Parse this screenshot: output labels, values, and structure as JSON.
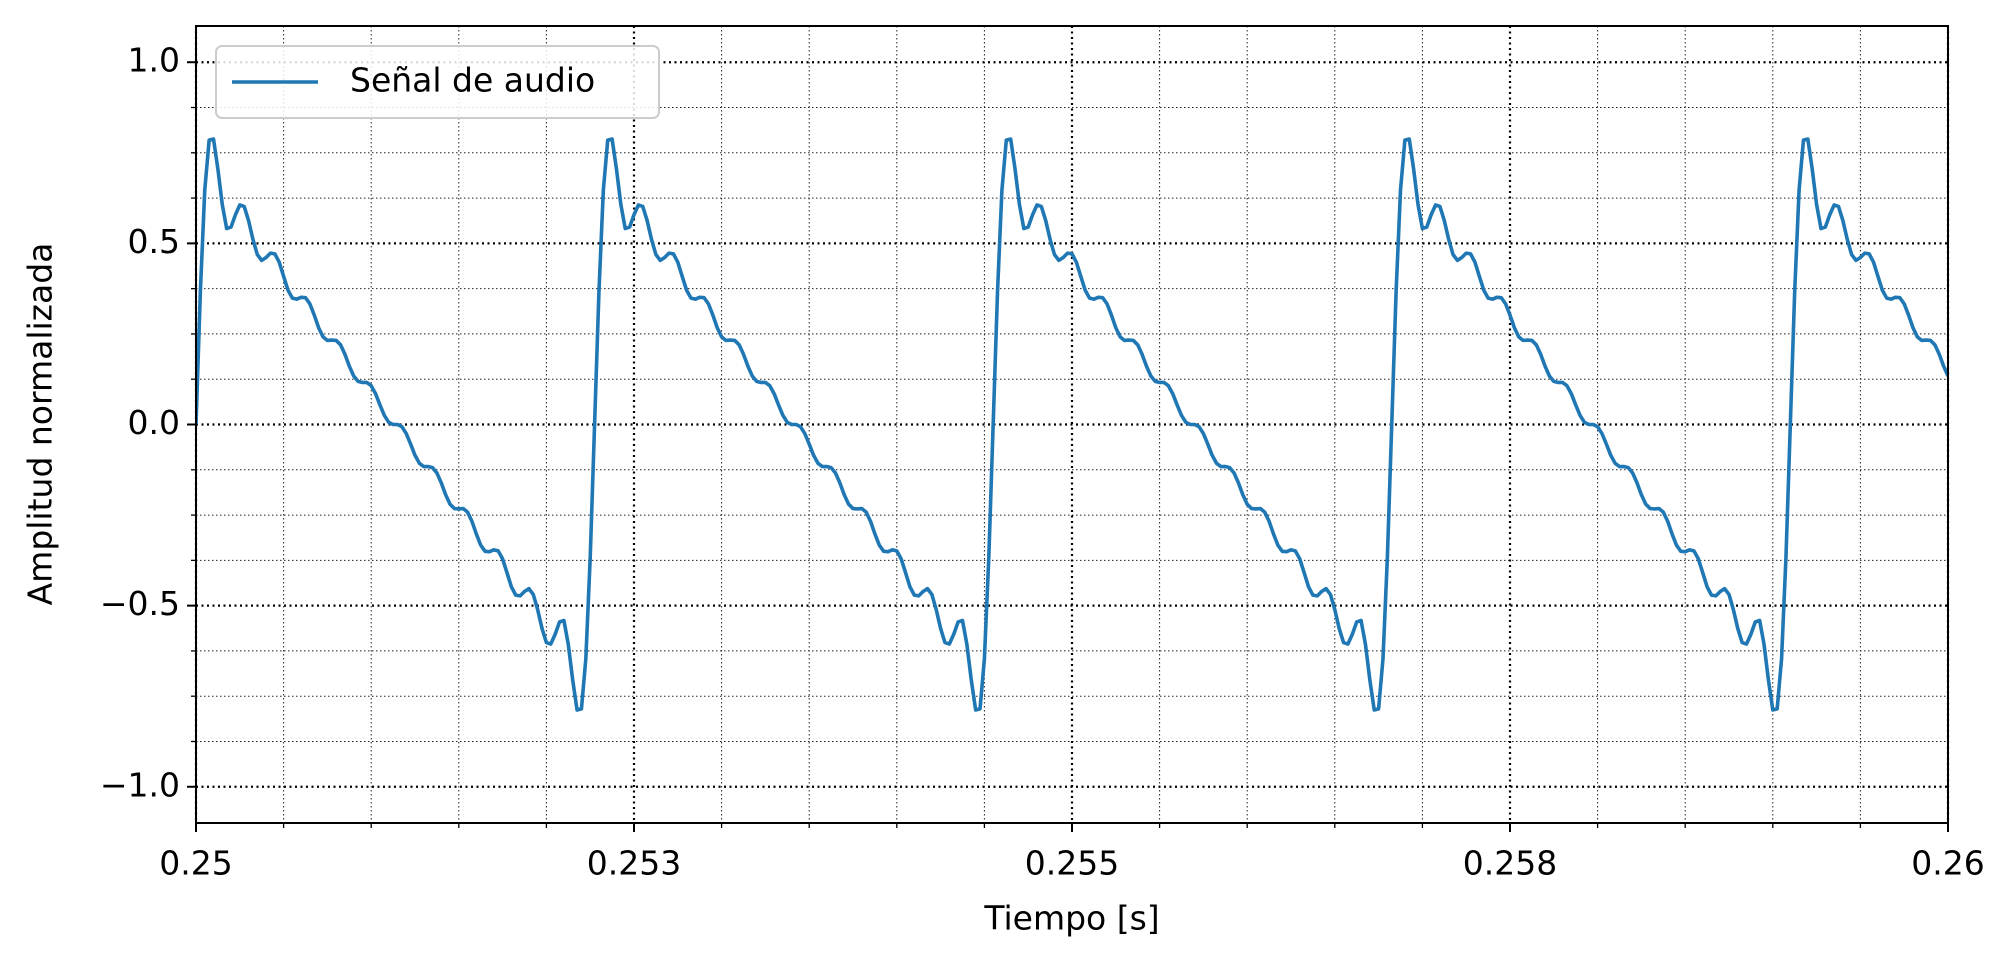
{
  "chart_data": {
    "type": "line",
    "xlabel": "Tiempo [s]",
    "ylabel": "Amplitud normalizada",
    "xlim": [
      0.25,
      0.26
    ],
    "ylim": [
      -1.1,
      1.1
    ],
    "xticks": [
      0.25,
      {
        "value": 0.2525,
        "label": "0.253"
      },
      0.255,
      {
        "value": 0.2575,
        "label": "0.258"
      },
      0.26
    ],
    "yticks": [
      {
        "value": -1,
        "label": "−1.0"
      },
      {
        "value": -0.5,
        "label": "−0.5"
      },
      {
        "value": 0,
        "label": "0.0"
      },
      {
        "value": 0.5,
        "label": "0.5"
      },
      {
        "value": 1,
        "label": "1.0"
      }
    ],
    "xminorticks": [
      0.2505,
      0.251,
      0.2515,
      0.252,
      0.253,
      0.2535,
      0.254,
      0.2545,
      0.2555,
      0.256,
      0.2565,
      0.257,
      0.258,
      0.2585,
      0.259,
      0.2595
    ],
    "yminorticks": [
      -0.875,
      -0.75,
      -0.625,
      -0.375,
      -0.25,
      -0.125,
      0.125,
      0.25,
      0.375,
      0.625,
      0.75,
      0.875
    ],
    "grid": true,
    "legend": "upper left",
    "x": [
      0.25,
      0.250025,
      0.25005,
      0.250075,
      0.2501,
      0.250125,
      0.25015,
      0.250175,
      0.2502,
      0.250225,
      0.25025,
      0.250275,
      0.2503,
      0.250325,
      0.25035,
      0.250375,
      0.2504,
      0.250425,
      0.25045,
      0.250475,
      0.2505,
      0.250525,
      0.25055,
      0.250575,
      0.2506,
      0.250625,
      0.25065,
      0.250675,
      0.2507,
      0.250725,
      0.25075,
      0.250775,
      0.2508,
      0.250825,
      0.25085,
      0.250875,
      0.2509,
      0.250925,
      0.25095,
      0.250975,
      0.251,
      0.251025,
      0.25105,
      0.251075,
      0.2511,
      0.251125,
      0.25115,
      0.251175,
      0.2512,
      0.251225,
      0.25125,
      0.251275,
      0.2513,
      0.251325,
      0.25135,
      0.251375,
      0.2514,
      0.251425,
      0.25145,
      0.251475,
      0.2515,
      0.251525,
      0.25155,
      0.251575,
      0.2516,
      0.251625,
      0.25165,
      0.251675,
      0.2517,
      0.251725,
      0.25175,
      0.251775,
      0.2518,
      0.251825,
      0.25185,
      0.251875,
      0.2519,
      0.251925,
      0.25195,
      0.251975,
      0.252,
      0.252025,
      0.25205,
      0.252075,
      0.2521,
      0.252125,
      0.25215,
      0.252175,
      0.2522,
      0.252225,
      0.25225,
      0.252275,
      0.2523,
      0.252325,
      0.25235,
      0.252375,
      0.2524,
      0.252425,
      0.25245,
      0.252475,
      0.2525,
      0.252525,
      0.25255,
      0.252575,
      0.2526,
      0.252625,
      0.25265,
      0.252675,
      0.2527,
      0.252725,
      0.25275,
      0.252775,
      0.2528,
      0.252825,
      0.25285,
      0.252875,
      0.2529,
      0.252925,
      0.25295,
      0.252975,
      0.253,
      0.253025,
      0.25305,
      0.253075,
      0.2531,
      0.253125,
      0.25315,
      0.253175,
      0.2532,
      0.253225,
      0.25325,
      0.253275,
      0.2533,
      0.253325,
      0.25335,
      0.253375,
      0.2534,
      0.253425,
      0.25345,
      0.253475,
      0.2535,
      0.253525,
      0.25355,
      0.253575,
      0.2536,
      0.253625,
      0.25365,
      0.253675,
      0.2537,
      0.253725,
      0.25375,
      0.253775,
      0.2538,
      0.253825,
      0.25385,
      0.253875,
      0.2539,
      0.253925,
      0.25395,
      0.253975,
      0.254,
      0.254025,
      0.25405,
      0.254075,
      0.2541,
      0.254125,
      0.25415,
      0.254175,
      0.2542,
      0.254225,
      0.25425,
      0.254275,
      0.2543,
      0.254325,
      0.25435,
      0.254375,
      0.2544,
      0.254425,
      0.25445,
      0.254475,
      0.2545,
      0.254525,
      0.25455,
      0.254575,
      0.2546,
      0.254625,
      0.25465,
      0.254675,
      0.2547,
      0.254725,
      0.25475,
      0.254775,
      0.2548,
      0.254825,
      0.25485,
      0.254875,
      0.2549,
      0.254925,
      0.25495,
      0.254975,
      0.255,
      0.255025,
      0.25505,
      0.255075,
      0.2551,
      0.255125,
      0.25515,
      0.255175,
      0.2552,
      0.255225,
      0.25525,
      0.255275,
      0.2553,
      0.255325,
      0.25535,
      0.255375,
      0.2554,
      0.255425,
      0.25545,
      0.255475,
      0.2555,
      0.255525,
      0.25555,
      0.255575,
      0.2556,
      0.255625,
      0.25565,
      0.255675,
      0.2557,
      0.255725,
      0.25575,
      0.255775,
      0.2558,
      0.255825,
      0.25585,
      0.255875,
      0.2559,
      0.255925,
      0.25595,
      0.255975,
      0.256,
      0.256025,
      0.25605,
      0.256075,
      0.2561,
      0.256125,
      0.25615,
      0.256175,
      0.2562,
      0.256225,
      0.25625,
      0.256275,
      0.2563,
      0.256325,
      0.25635,
      0.256375,
      0.2564,
      0.256425,
      0.25645,
      0.256475,
      0.2565,
      0.256525,
      0.25655,
      0.256575,
      0.2566,
      0.256625,
      0.25665,
      0.256675,
      0.2567,
      0.256725,
      0.25675,
      0.256775,
      0.2568,
      0.256825,
      0.25685,
      0.256875,
      0.2569,
      0.256925,
      0.25695,
      0.256975,
      0.257,
      0.257025,
      0.25705,
      0.257075,
      0.2571,
      0.257125,
      0.25715,
      0.257175,
      0.2572,
      0.257225,
      0.25725,
      0.257275,
      0.2573,
      0.257325,
      0.25735,
      0.257375,
      0.2574,
      0.257425,
      0.25745,
      0.257475,
      0.2575,
      0.257525,
      0.25755,
      0.257575,
      0.2576,
      0.257625,
      0.25765,
      0.257675,
      0.2577,
      0.257725,
      0.25775,
      0.257775,
      0.2578,
      0.257825,
      0.25785,
      0.257875,
      0.2579,
      0.257925,
      0.25795,
      0.257975,
      0.258,
      0.258025,
      0.25805,
      0.258075,
      0.2581,
      0.258125,
      0.25815,
      0.258175,
      0.2582,
      0.258225,
      0.25825,
      0.258275,
      0.2583,
      0.258325,
      0.25835,
      0.258375,
      0.2584,
      0.258425,
      0.25845,
      0.258475,
      0.2585,
      0.258525,
      0.25855,
      0.258575,
      0.2586,
      0.258625,
      0.25865,
      0.258675,
      0.2587,
      0.258725,
      0.25875,
      0.258775,
      0.2588,
      0.258825,
      0.25885,
      0.258875,
      0.2589,
      0.258925,
      0.25895,
      0.258975,
      0.259,
      0.259025,
      0.25905,
      0.259075,
      0.2591,
      0.259125,
      0.25915,
      0.259175,
      0.2592,
      0.259225,
      0.25925,
      0.259275,
      0.2593,
      0.259325,
      0.25935,
      0.259375,
      0.2594,
      0.259425,
      0.25945,
      0.259475,
      0.2595,
      0.259525,
      0.25955,
      0.259575,
      0.2596,
      0.259625,
      0.25965,
      0.259675,
      0.2597,
      0.259725,
      0.25975,
      0.259775,
      0.2598,
      0.259825,
      0.25985,
      0.259875,
      0.2599,
      0.259925,
      0.25995,
      0.259975,
      0.26
    ],
    "series": [
      {
        "name": "Señal de audio",
        "color": "#1f77b4",
        "values": [
          0,
          0.368,
          0.647,
          0.785,
          0.788,
          0.705,
          0.607,
          0.541,
          0.545,
          0.579,
          0.606,
          0.602,
          0.563,
          0.511,
          0.469,
          0.453,
          0.461,
          0.473,
          0.471,
          0.448,
          0.409,
          0.371,
          0.349,
          0.346,
          0.351,
          0.35,
          0.333,
          0.302,
          0.267,
          0.242,
          0.232,
          0.233,
          0.232,
          0.22,
          0.194,
          0.161,
          0.134,
          0.119,
          0.116,
          0.116,
          0.107,
          0.085,
          0.054,
          0.025,
          0.006,
          0,
          0,
          -0.006,
          -0.025,
          -0.054,
          -0.085,
          -0.107,
          -0.116,
          -0.116,
          -0.119,
          -0.134,
          -0.161,
          -0.194,
          -0.22,
          -0.232,
          -0.233,
          -0.232,
          -0.242,
          -0.267,
          -0.302,
          -0.333,
          -0.35,
          -0.351,
          -0.346,
          -0.349,
          -0.371,
          -0.409,
          -0.448,
          -0.471,
          -0.473,
          -0.461,
          -0.453,
          -0.469,
          -0.511,
          -0.563,
          -0.602,
          -0.606,
          -0.579,
          -0.545,
          -0.541,
          -0.607,
          -0.705,
          -0.788,
          -0.785,
          -0.647,
          -0.368,
          0,
          0.368,
          0.647,
          0.785,
          0.788,
          0.705,
          0.607,
          0.541,
          0.545,
          0.579,
          0.606,
          0.602,
          0.563,
          0.511,
          0.469,
          0.453,
          0.461,
          0.473,
          0.471,
          0.448,
          0.409,
          0.371,
          0.349,
          0.346,
          0.351,
          0.35,
          0.333,
          0.302,
          0.267,
          0.242,
          0.232,
          0.233,
          0.232,
          0.22,
          0.194,
          0.161,
          0.134,
          0.119,
          0.116,
          0.116,
          0.107,
          0.085,
          0.054,
          0.025,
          0.006,
          0,
          0,
          -0.006,
          -0.025,
          -0.054,
          -0.085,
          -0.107,
          -0.116,
          -0.116,
          -0.119,
          -0.134,
          -0.161,
          -0.194,
          -0.22,
          -0.232,
          -0.233,
          -0.232,
          -0.242,
          -0.267,
          -0.302,
          -0.333,
          -0.35,
          -0.351,
          -0.346,
          -0.349,
          -0.371,
          -0.409,
          -0.448,
          -0.471,
          -0.473,
          -0.461,
          -0.453,
          -0.469,
          -0.511,
          -0.563,
          -0.602,
          -0.606,
          -0.579,
          -0.545,
          -0.541,
          -0.607,
          -0.705,
          -0.788,
          -0.785,
          -0.647,
          -0.368,
          0,
          0.368,
          0.647,
          0.785,
          0.788,
          0.705,
          0.607,
          0.541,
          0.545,
          0.579,
          0.606,
          0.602,
          0.563,
          0.511,
          0.469,
          0.453,
          0.461,
          0.473,
          0.471,
          0.448,
          0.409,
          0.371,
          0.349,
          0.346,
          0.351,
          0.35,
          0.333,
          0.302,
          0.267,
          0.242,
          0.232,
          0.233,
          0.232,
          0.22,
          0.194,
          0.161,
          0.134,
          0.119,
          0.116,
          0.116,
          0.107,
          0.085,
          0.054,
          0.025,
          0.006,
          0,
          0,
          -0.006,
          -0.025,
          -0.054,
          -0.085,
          -0.107,
          -0.116,
          -0.116,
          -0.119,
          -0.134,
          -0.161,
          -0.194,
          -0.22,
          -0.232,
          -0.233,
          -0.232,
          -0.242,
          -0.267,
          -0.302,
          -0.333,
          -0.35,
          -0.351,
          -0.346,
          -0.349,
          -0.371,
          -0.409,
          -0.448,
          -0.471,
          -0.473,
          -0.461,
          -0.453,
          -0.469,
          -0.511,
          -0.563,
          -0.602,
          -0.606,
          -0.579,
          -0.545,
          -0.541,
          -0.607,
          -0.705,
          -0.788,
          -0.785,
          -0.647,
          -0.368,
          0,
          0.368,
          0.647,
          0.785,
          0.788,
          0.705,
          0.607,
          0.541,
          0.545,
          0.579,
          0.606,
          0.602,
          0.563,
          0.511,
          0.469,
          0.453,
          0.461,
          0.473,
          0.471,
          0.448,
          0.409,
          0.371,
          0.349,
          0.346,
          0.351,
          0.35,
          0.333,
          0.302,
          0.267,
          0.242,
          0.232,
          0.233,
          0.232,
          0.22,
          0.194,
          0.161,
          0.134,
          0.119,
          0.116,
          0.116,
          0.107,
          0.085,
          0.054,
          0.025,
          0.006,
          0,
          0,
          -0.006,
          -0.025,
          -0.054,
          -0.085,
          -0.107,
          -0.116,
          -0.116,
          -0.119,
          -0.134,
          -0.161,
          -0.194,
          -0.22,
          -0.232,
          -0.233,
          -0.232,
          -0.242,
          -0.267,
          -0.302,
          -0.333,
          -0.35,
          -0.351,
          -0.346,
          -0.349,
          -0.371,
          -0.409,
          -0.448,
          -0.471,
          -0.473,
          -0.461,
          -0.453,
          -0.469,
          -0.511,
          -0.563,
          -0.602,
          -0.606,
          -0.579,
          -0.545,
          -0.541,
          -0.607,
          -0.705,
          -0.788,
          -0.785,
          -0.647,
          -0.368,
          0,
          0.368,
          0.647,
          0.785,
          0.788,
          0.705,
          0.607,
          0.541,
          0.545,
          0.579,
          0.606,
          0.602,
          0.563,
          0.511,
          0.469,
          0.453,
          0.461,
          0.473,
          0.471,
          0.448,
          0.409,
          0.371,
          0.349,
          0.346,
          0.351,
          0.35,
          0.333,
          0.302,
          0.267,
          0.242,
          0.232,
          0.233,
          0.232,
          0.22,
          0.194,
          0.161,
          0.134
        ]
      }
    ]
  }
}
